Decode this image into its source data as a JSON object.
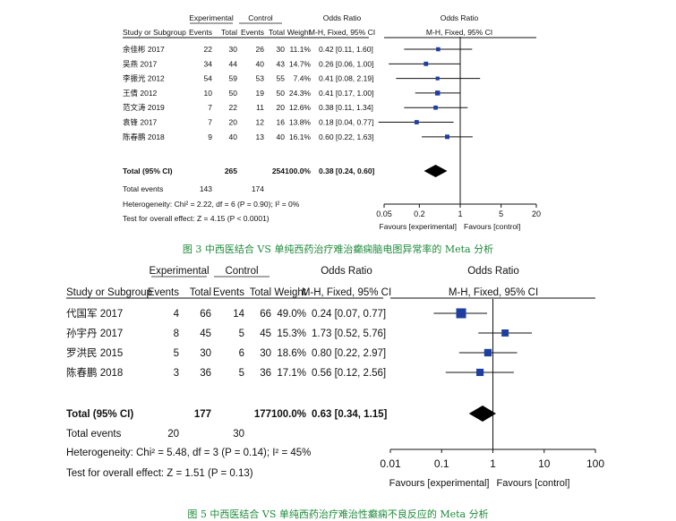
{
  "chart_data": [
    {
      "type": "forest",
      "headers": {
        "study": "Study or Subgroup",
        "experimental": "Experimental",
        "control": "Control",
        "events": "Events",
        "total": "Total",
        "weight": "Weight",
        "or_title": "Odds Ratio",
        "or_method": "M-H, Fixed, 95% CI"
      },
      "studies": [
        {
          "name": "余佳彬 2017",
          "e_events": "22",
          "e_total": "30",
          "c_events": "26",
          "c_total": "30",
          "weight": "11.1%",
          "ci_text": "0.42 [0.11, 1.60]",
          "or": 0.42,
          "lo": 0.11,
          "hi": 1.6
        },
        {
          "name": "吴燕 2017",
          "e_events": "34",
          "e_total": "44",
          "c_events": "40",
          "c_total": "43",
          "weight": "14.7%",
          "ci_text": "0.26 [0.06, 1.00]",
          "or": 0.26,
          "lo": 0.06,
          "hi": 1.0
        },
        {
          "name": "李振光 2012",
          "e_events": "54",
          "e_total": "59",
          "c_events": "53",
          "c_total": "55",
          "weight": "7.4%",
          "ci_text": "0.41 [0.08, 2.19]",
          "or": 0.41,
          "lo": 0.08,
          "hi": 2.19
        },
        {
          "name": "王倩 2012",
          "e_events": "10",
          "e_total": "50",
          "c_events": "19",
          "c_total": "50",
          "weight": "24.3%",
          "ci_text": "0.41 [0.17, 1.00]",
          "or": 0.41,
          "lo": 0.17,
          "hi": 1.0
        },
        {
          "name": "范文涛 2019",
          "e_events": "7",
          "e_total": "22",
          "c_events": "11",
          "c_total": "20",
          "weight": "12.6%",
          "ci_text": "0.38 [0.11, 1.34]",
          "or": 0.38,
          "lo": 0.11,
          "hi": 1.34
        },
        {
          "name": "袁锋 2017",
          "e_events": "7",
          "e_total": "20",
          "c_events": "12",
          "c_total": "16",
          "weight": "13.8%",
          "ci_text": "0.18 [0.04, 0.77]",
          "or": 0.18,
          "lo": 0.04,
          "hi": 0.77
        },
        {
          "name": "陈春鹏 2018",
          "e_events": "9",
          "e_total": "40",
          "c_events": "13",
          "c_total": "40",
          "weight": "16.1%",
          "ci_text": "0.60 [0.22, 1.63]",
          "or": 0.6,
          "lo": 0.22,
          "hi": 1.63
        }
      ],
      "total": {
        "label": "Total (95% CI)",
        "e_total": "265",
        "c_total": "254",
        "weight": "100.0%",
        "ci_text": "0.38 [0.24, 0.60]",
        "or": 0.38,
        "lo": 0.24,
        "hi": 0.6
      },
      "total_events": {
        "label": "Total events",
        "e": "143",
        "c": "174"
      },
      "heterogeneity": "Heterogeneity: Chi² = 2.22, df = 6 (P = 0.90); I² = 0%",
      "overall_effect": "Test for overall effect: Z = 4.15 (P < 0.0001)",
      "axis": {
        "ticks": [
          0.05,
          0.2,
          1,
          5,
          20
        ],
        "tick_labels": [
          "0.05",
          "0.2",
          "1",
          "5",
          "20"
        ],
        "range": [
          0.05,
          20
        ],
        "scale": "log"
      },
      "favours_left": "Favours [experimental]",
      "favours_right": "Favours [control]",
      "caption": "图 3 中西医结合 VS 单纯西药治疗难治癫痫脑电图异常率的 Meta 分析"
    },
    {
      "type": "forest",
      "headers": {
        "study": "Study or Subgroup",
        "experimental": "Experimental",
        "control": "Control",
        "events": "Events",
        "total": "Total",
        "weight": "Weight",
        "or_title": "Odds Ratio",
        "or_method": "M-H, Fixed, 95% CI"
      },
      "studies": [
        {
          "name": "代国军 2017",
          "e_events": "4",
          "e_total": "66",
          "c_events": "14",
          "c_total": "66",
          "weight": "49.0%",
          "ci_text": "0.24 [0.07, 0.77]",
          "or": 0.24,
          "lo": 0.07,
          "hi": 0.77
        },
        {
          "name": "孙宇丹 2017",
          "e_events": "8",
          "e_total": "45",
          "c_events": "5",
          "c_total": "45",
          "weight": "15.3%",
          "ci_text": "1.73 [0.52, 5.76]",
          "or": 1.73,
          "lo": 0.52,
          "hi": 5.76
        },
        {
          "name": "罗洪民 2015",
          "e_events": "5",
          "e_total": "30",
          "c_events": "6",
          "c_total": "30",
          "weight": "18.6%",
          "ci_text": "0.80 [0.22, 2.97]",
          "or": 0.8,
          "lo": 0.22,
          "hi": 2.97
        },
        {
          "name": "陈春鹏 2018",
          "e_events": "3",
          "e_total": "36",
          "c_events": "5",
          "c_total": "36",
          "weight": "17.1%",
          "ci_text": "0.56 [0.12, 2.56]",
          "or": 0.56,
          "lo": 0.12,
          "hi": 2.56
        }
      ],
      "total": {
        "label": "Total (95% CI)",
        "e_total": "177",
        "c_total": "177",
        "weight": "100.0%",
        "ci_text": "0.63 [0.34, 1.15]",
        "or": 0.63,
        "lo": 0.34,
        "hi": 1.15
      },
      "total_events": {
        "label": "Total events",
        "e": "20",
        "c": "30"
      },
      "heterogeneity": "Heterogeneity: Chi² = 5.48, df = 3 (P = 0.14); I² = 45%",
      "overall_effect": "Test for overall effect: Z = 1.51 (P = 0.13)",
      "axis": {
        "ticks": [
          0.01,
          0.1,
          1,
          10,
          100
        ],
        "tick_labels": [
          "0.01",
          "0.1",
          "1",
          "10",
          "100"
        ],
        "range": [
          0.01,
          100
        ],
        "scale": "log"
      },
      "favours_left": "Favours [experimental]",
      "favours_right": "Favours [control]",
      "caption": "图 5 中西医结合 VS 单纯西药治疗难治性癫痫不良反应的 Meta 分析"
    }
  ]
}
